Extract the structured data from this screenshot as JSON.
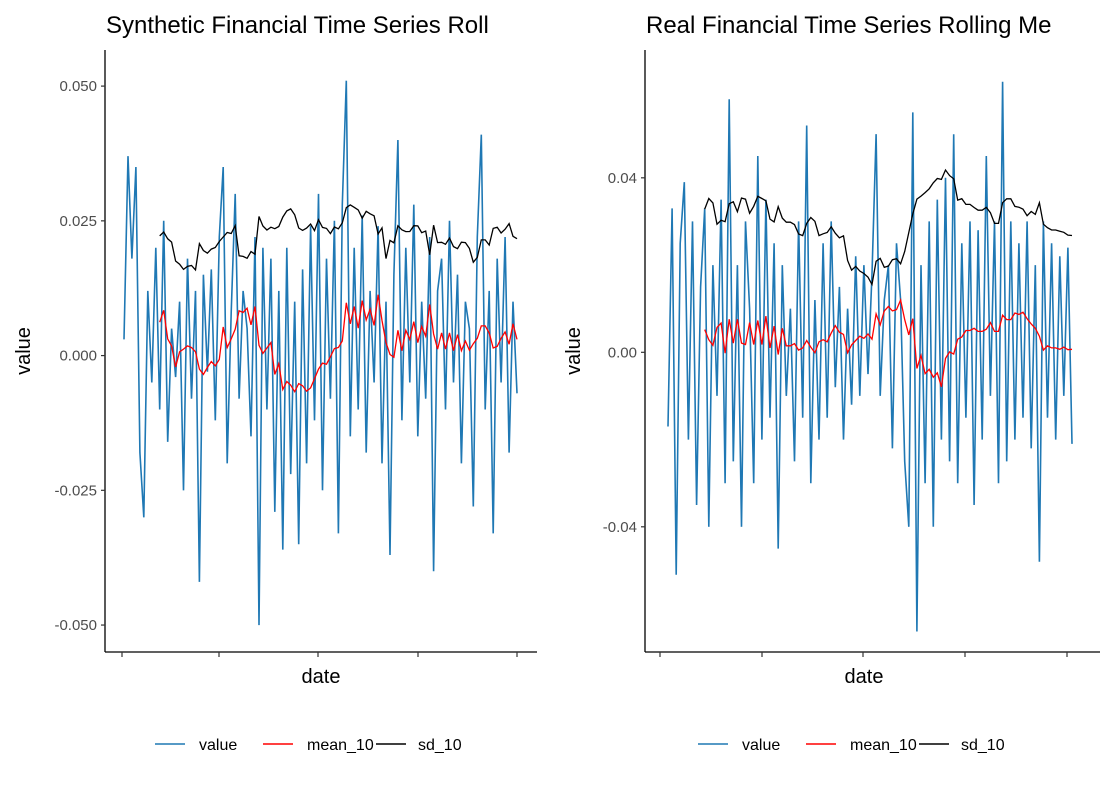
{
  "chart_data": [
    {
      "type": "line",
      "title": "Synthetic Financial Time Series Roll",
      "xlabel": "date",
      "ylabel": "value",
      "ylim": [
        -0.055,
        0.0567
      ],
      "yticks": [
        "0.050",
        "0.025",
        "0.000",
        "-0.025",
        "-0.050"
      ],
      "ytick_values": [
        0.05,
        0.025,
        0,
        -0.025,
        -0.05
      ],
      "xtick_count": 5,
      "grid": false,
      "legend": "bottom",
      "window": 10,
      "series": [
        {
          "name": "value",
          "color": "#1f78b4",
          "values": [
            0.003,
            0.037,
            0.018,
            0.035,
            -0.018,
            -0.03,
            0.012,
            -0.005,
            0.02,
            -0.01,
            0.025,
            -0.016,
            0.005,
            -0.004,
            0.01,
            -0.025,
            0.018,
            -0.008,
            0.012,
            -0.042,
            0.015,
            -0.003,
            0.016,
            -0.012,
            0.022,
            0.035,
            -0.02,
            0.008,
            0.03,
            -0.008,
            0.012,
            0.005,
            -0.015,
            0.022,
            -0.05,
            0.02,
            -0.01,
            0.018,
            -0.029,
            0.012,
            -0.036,
            0.02,
            -0.022,
            0.01,
            -0.035,
            0.016,
            -0.02,
            0.024,
            -0.012,
            0.03,
            -0.025,
            0.018,
            -0.008,
            0.025,
            -0.033,
            0.028,
            0.051,
            -0.015,
            0.02,
            -0.01,
            0.026,
            -0.018,
            0.012,
            -0.005,
            0.024,
            -0.02,
            0.01,
            -0.037,
            0.015,
            0.04,
            -0.012,
            0.02,
            -0.005,
            0.028,
            -0.015,
            0.01,
            -0.008,
            0.022,
            -0.04,
            0.012,
            0.018,
            -0.01,
            0.025,
            -0.005,
            0.015,
            -0.02,
            0.01,
            0.005,
            -0.028,
            0.022,
            0.041,
            -0.01,
            0.012,
            -0.033,
            0.018,
            -0.005,
            0.022,
            -0.018,
            0.01,
            -0.007
          ]
        },
        {
          "name": "mean_10",
          "color": "#ff0000"
        },
        {
          "name": "sd_10",
          "color": "#000000"
        }
      ]
    },
    {
      "type": "line",
      "title": "Real Financial Time Series Rolling Me",
      "xlabel": "date",
      "ylabel": "value",
      "ylim": [
        -0.0687,
        0.0693
      ],
      "yticks": [
        "0.04",
        "0.00",
        "-0.04"
      ],
      "ytick_values": [
        0.04,
        0,
        -0.04
      ],
      "xtick_count": 5,
      "grid": false,
      "legend": "bottom",
      "window": 10,
      "series": [
        {
          "name": "value",
          "color": "#1f78b4",
          "values": [
            -0.017,
            0.033,
            -0.051,
            0.025,
            0.039,
            -0.02,
            0.03,
            -0.035,
            0.015,
            0.033,
            -0.04,
            0.02,
            -0.01,
            0.035,
            -0.03,
            0.058,
            -0.025,
            0.02,
            -0.04,
            0.03,
            0.01,
            -0.03,
            0.045,
            -0.02,
            0.035,
            -0.015,
            0.025,
            -0.045,
            0.02,
            -0.01,
            0.01,
            -0.025,
            0.03,
            -0.015,
            0.052,
            -0.03,
            0.012,
            -0.02,
            0.025,
            -0.015,
            0.03,
            -0.008,
            0.015,
            -0.02,
            0.01,
            -0.012,
            0.022,
            -0.01,
            0.02,
            -0.005,
            0.018,
            0.05,
            -0.01,
            0.012,
            0.02,
            -0.022,
            0.025,
            0.012,
            -0.025,
            -0.04,
            0.055,
            -0.064,
            0.02,
            -0.03,
            0.03,
            -0.04,
            0.035,
            -0.02,
            0.04,
            -0.025,
            0.05,
            -0.03,
            0.025,
            -0.015,
            0.03,
            -0.035,
            0.028,
            -0.02,
            0.045,
            -0.01,
            0.03,
            -0.03,
            0.062,
            -0.025,
            0.03,
            -0.02,
            0.025,
            -0.015,
            0.03,
            -0.022,
            0.02,
            -0.048,
            0.03,
            -0.015,
            0.025,
            -0.02,
            0.022,
            -0.01,
            0.024,
            -0.021
          ]
        },
        {
          "name": "mean_10",
          "color": "#ff0000"
        },
        {
          "name": "sd_10",
          "color": "#000000"
        }
      ]
    }
  ]
}
